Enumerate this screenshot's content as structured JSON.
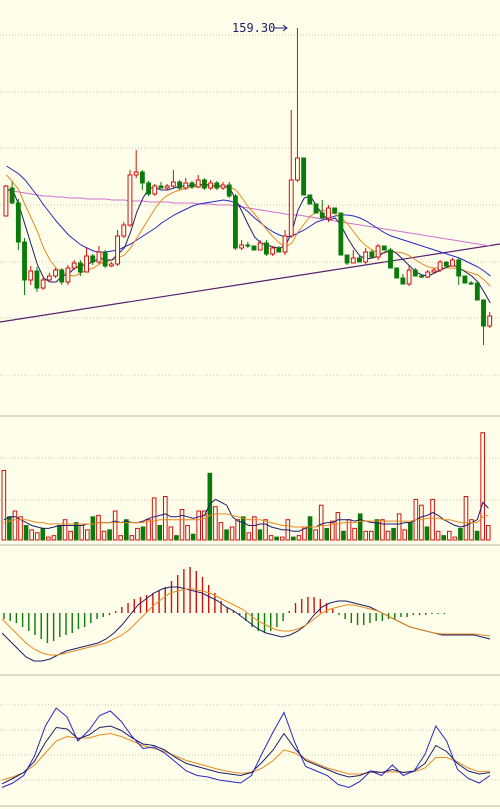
{
  "colors": {
    "background": "#fefeeb",
    "up": "#d01010",
    "down": "#0a7a0a",
    "ma5": "#1e1e6e",
    "ma10": "#e88a1e",
    "ma20": "#2828c8",
    "ma60": "#d070d0",
    "trendline": "#5a1e6e",
    "grid": "#c8c8a8"
  },
  "chart_data": [
    {
      "type": "candlestick",
      "annotation": "159.30",
      "high_value": 159.3,
      "candles_ohlc": [
        [
          216,
          186,
          188,
          185
        ],
        [
          188,
          203,
          182,
          204
        ],
        [
          203,
          242,
          199,
          250
        ],
        [
          242,
          280,
          238,
          295
        ],
        [
          280,
          271,
          285,
          266
        ],
        [
          271,
          288,
          267,
          292
        ],
        [
          288,
          280,
          290,
          277
        ],
        [
          280,
          276,
          282,
          273
        ],
        [
          276,
          270,
          278,
          268
        ],
        [
          270,
          282,
          268,
          285
        ],
        [
          282,
          268,
          285,
          265
        ],
        [
          268,
          263,
          270,
          260
        ],
        [
          263,
          272,
          260,
          276
        ],
        [
          272,
          256,
          272,
          248
        ],
        [
          256,
          262,
          254,
          265
        ],
        [
          262,
          252,
          264,
          246
        ],
        [
          252,
          266,
          250,
          268
        ],
        [
          266,
          264,
          267,
          262
        ],
        [
          264,
          236,
          266,
          230
        ],
        [
          236,
          225,
          238,
          222
        ],
        [
          225,
          175,
          227,
          170
        ],
        [
          175,
          172,
          178,
          150
        ],
        [
          172,
          183,
          170,
          190
        ],
        [
          183,
          194,
          181,
          196
        ],
        [
          194,
          186,
          196,
          184
        ],
        [
          186,
          188,
          188,
          182
        ],
        [
          188,
          186,
          190,
          184
        ],
        [
          186,
          182,
          188,
          170
        ],
        [
          182,
          188,
          180,
          190
        ],
        [
          188,
          183,
          190,
          178
        ],
        [
          183,
          187,
          181,
          189
        ],
        [
          187,
          180,
          188,
          175
        ],
        [
          180,
          188,
          178,
          190
        ],
        [
          188,
          183,
          190,
          180
        ],
        [
          183,
          188,
          181,
          190
        ],
        [
          188,
          185,
          190,
          182
        ],
        [
          185,
          196,
          182,
          198
        ],
        [
          196,
          248,
          194,
          250
        ],
        [
          248,
          245,
          250,
          240
        ],
        [
          245,
          246,
          248,
          242
        ],
        [
          246,
          250,
          248,
          246
        ],
        [
          250,
          243,
          250,
          240
        ],
        [
          243,
          254,
          240,
          256
        ],
        [
          254,
          248,
          256,
          246
        ],
        [
          248,
          252,
          250,
          246
        ],
        [
          252,
          236,
          255,
          230
        ],
        [
          236,
          180,
          238,
          110
        ],
        [
          180,
          158,
          182,
          28
        ],
        [
          158,
          195,
          160,
          185
        ],
        [
          195,
          204,
          197,
          197
        ],
        [
          204,
          213,
          206,
          210
        ],
        [
          213,
          218,
          215,
          200
        ],
        [
          218,
          208,
          222,
          205
        ],
        [
          208,
          213,
          210,
          212
        ],
        [
          213,
          255,
          215,
          252
        ],
        [
          255,
          263,
          258,
          265
        ],
        [
          263,
          258,
          260,
          250
        ],
        [
          258,
          262,
          260,
          255
        ],
        [
          262,
          252,
          264,
          248
        ],
        [
          252,
          257,
          255,
          250
        ],
        [
          257,
          246,
          260,
          244
        ],
        [
          246,
          250,
          248,
          246
        ],
        [
          250,
          268,
          248,
          262
        ],
        [
          268,
          278,
          270,
          270
        ],
        [
          278,
          284,
          280,
          274
        ],
        [
          284,
          270,
          286,
          266
        ],
        [
          270,
          276,
          272,
          268
        ],
        [
          276,
          277,
          278,
          274
        ],
        [
          277,
          272,
          278,
          270
        ],
        [
          272,
          270,
          274,
          268
        ],
        [
          270,
          262,
          272,
          260
        ],
        [
          262,
          266,
          268,
          263
        ],
        [
          266,
          260,
          265,
          258
        ],
        [
          260,
          276,
          258,
          285
        ],
        [
          276,
          283,
          278,
          280
        ],
        [
          283,
          283,
          285,
          281
        ],
        [
          283,
          300,
          285,
          296
        ],
        [
          300,
          326,
          302,
          345
        ],
        [
          326,
          316,
          328,
          312
        ]
      ],
      "ma": {
        "ma5": [
          190,
          190,
          205,
          225,
          245,
          265,
          278,
          282,
          282,
          276,
          274,
          268,
          266,
          264,
          262,
          258,
          260,
          260,
          254,
          248,
          232,
          212,
          198,
          188,
          188,
          190,
          190,
          188,
          186,
          186,
          185,
          185,
          184,
          186,
          186,
          186,
          188,
          200,
          212,
          225,
          237,
          243,
          245,
          247,
          248,
          246,
          232,
          210,
          198,
          196,
          206,
          215,
          220,
          218,
          226,
          238,
          248,
          256,
          259,
          258,
          256,
          252,
          250,
          254,
          260,
          266,
          272,
          275,
          276,
          273,
          270,
          267,
          265,
          268,
          272,
          276,
          282,
          292,
          303
        ],
        "ma10": [
          175,
          182,
          190,
          205,
          218,
          232,
          248,
          260,
          268,
          272,
          275,
          276,
          273,
          270,
          268,
          264,
          262,
          260,
          258,
          255,
          248,
          238,
          228,
          218,
          208,
          200,
          195,
          192,
          190,
          188,
          187,
          186,
          186,
          186,
          186,
          186,
          187,
          190,
          198,
          207,
          214,
          222,
          230,
          237,
          243,
          247,
          243,
          232,
          224,
          216,
          212,
          210,
          212,
          214,
          218,
          224,
          232,
          240,
          246,
          250,
          253,
          253,
          252,
          252,
          253,
          256,
          260,
          264,
          267,
          268,
          268,
          268,
          268,
          269,
          271,
          273,
          275,
          280,
          286
        ],
        "ma20": [
          166,
          170,
          174,
          180,
          188,
          196,
          205,
          213,
          221,
          228,
          235,
          240,
          245,
          248,
          251,
          252,
          252,
          251,
          250,
          247,
          244,
          240,
          236,
          232,
          228,
          223,
          219,
          215,
          212,
          209,
          206,
          204,
          203,
          202,
          201,
          200,
          201,
          203,
          207,
          212,
          218,
          223,
          228,
          232,
          235,
          237,
          236,
          233,
          230,
          226,
          222,
          220,
          218,
          216,
          215,
          215,
          216,
          218,
          221,
          225,
          229,
          233,
          236,
          238,
          240,
          242,
          244,
          246,
          248,
          250,
          252,
          254,
          256,
          258,
          261,
          264,
          267,
          271,
          276
        ],
        "ma60": [
          190,
          191,
          192,
          193,
          194,
          195,
          196,
          196,
          197,
          197,
          198,
          198,
          198,
          199,
          199,
          199,
          199,
          200,
          200,
          200,
          201,
          201,
          201,
          202,
          202,
          202,
          202,
          203,
          203,
          203,
          203,
          204,
          204,
          204,
          205,
          205,
          205,
          206,
          207,
          208,
          209,
          210,
          211,
          212,
          213,
          214,
          215,
          215,
          216,
          217,
          218,
          219,
          220,
          221,
          222,
          223,
          224,
          225,
          226,
          227,
          228,
          229,
          230,
          231,
          232,
          233,
          234,
          235,
          236,
          237,
          238,
          239,
          240,
          241,
          242,
          243,
          244,
          245,
          246
        ]
      },
      "trendline": [
        [
          0,
          322
        ],
        [
          500,
          244
        ]
      ],
      "grid_y": [
        35,
        92,
        148,
        205,
        262,
        318,
        375
      ]
    },
    {
      "type": "bar",
      "name": "volume",
      "values": [
        48,
        16,
        20,
        16,
        10,
        7,
        5,
        8,
        2,
        3,
        10,
        14,
        6,
        12,
        10,
        7,
        16,
        17,
        6,
        7,
        20,
        3,
        14,
        3,
        8,
        9,
        14,
        29,
        10,
        30,
        9,
        3,
        21,
        10,
        4,
        20,
        20,
        46,
        23,
        12,
        7,
        9,
        14,
        16,
        5,
        16,
        7,
        14,
        3,
        2,
        2,
        14,
        2,
        3,
        9,
        16,
        7,
        24,
        8,
        13,
        19,
        6,
        14,
        8,
        18,
        6,
        6,
        14,
        14,
        6,
        8,
        18,
        7,
        12,
        28,
        24,
        9,
        28,
        6,
        3,
        6,
        2,
        8,
        30,
        14,
        6,
        74,
        10
      ],
      "lines": {
        "short": [
          14,
          16,
          16,
          14,
          12,
          10,
          9,
          8,
          8,
          9,
          10,
          10,
          10,
          10,
          10,
          11,
          11,
          12,
          12,
          12,
          13,
          12,
          13,
          12,
          12,
          13,
          15,
          16,
          17,
          18,
          16,
          16,
          17,
          16,
          15,
          16,
          17,
          25,
          28,
          26,
          24,
          16,
          13,
          12,
          10,
          10,
          11,
          11,
          9,
          8,
          7,
          7,
          6,
          6,
          8,
          9,
          9,
          11,
          12,
          12,
          14,
          14,
          14,
          13,
          14,
          13,
          12,
          12,
          11,
          11,
          11,
          11,
          12,
          12,
          14,
          16,
          17,
          19,
          17,
          14,
          12,
          10,
          9,
          10,
          12,
          14,
          26,
          22
        ],
        "long": [
          12,
          13,
          14,
          14,
          14,
          13,
          12,
          12,
          11,
          11,
          11,
          11,
          11,
          11,
          11,
          11,
          11,
          12,
          12,
          12,
          12,
          12,
          12,
          12,
          12,
          12,
          13,
          13,
          14,
          14,
          14,
          14,
          14,
          14,
          14,
          14,
          15,
          17,
          18,
          18,
          18,
          17,
          16,
          15,
          14,
          14,
          14,
          13,
          12,
          11,
          10,
          10,
          9,
          9,
          9,
          9,
          9,
          10,
          10,
          11,
          11,
          12,
          12,
          12,
          13,
          13,
          13,
          13,
          13,
          13,
          13,
          13,
          13,
          13,
          14,
          14,
          15,
          15,
          15,
          14,
          14,
          13,
          12,
          12,
          12,
          12,
          16,
          17
        ]
      },
      "grid_y": [
        458,
        500
      ]
    },
    {
      "type": "bar",
      "name": "macd",
      "histogram": [
        -6,
        -8,
        -10,
        -14,
        -18,
        -22,
        -26,
        -30,
        -28,
        -24,
        -22,
        -20,
        -16,
        -14,
        -10,
        -6,
        -4,
        -2,
        2,
        6,
        10,
        14,
        16,
        18,
        20,
        22,
        26,
        32,
        38,
        44,
        46,
        42,
        36,
        28,
        20,
        12,
        6,
        2,
        -2,
        -8,
        -14,
        -18,
        -20,
        -18,
        -14,
        -8,
        2,
        10,
        14,
        16,
        16,
        14,
        10,
        4,
        -2,
        -6,
        -10,
        -12,
        -12,
        -10,
        -8,
        -8,
        -6,
        -6,
        -4,
        -4,
        -2,
        -2,
        -2,
        -1,
        -1,
        -1,
        0,
        0,
        0,
        0,
        0,
        0,
        0
      ],
      "dif": [
        -20,
        -28,
        -36,
        -44,
        -48,
        -48,
        -46,
        -42,
        -38,
        -36,
        -34,
        -32,
        -30,
        -26,
        -20,
        -12,
        -2,
        8,
        14,
        20,
        24,
        26,
        26,
        24,
        22,
        20,
        16,
        12,
        6,
        2,
        -4,
        -10,
        -16,
        -20,
        -22,
        -24,
        -22,
        -18,
        -12,
        -2,
        6,
        10,
        12,
        12,
        10,
        8,
        6,
        2,
        -2,
        -6,
        -10,
        -14,
        -16,
        -18,
        -20,
        -22,
        -22,
        -22,
        -22,
        -22,
        -24,
        -26
      ],
      "dea": [
        -6,
        -14,
        -22,
        -30,
        -36,
        -40,
        -42,
        -42,
        -40,
        -38,
        -36,
        -34,
        -32,
        -30,
        -26,
        -22,
        -16,
        -8,
        0,
        8,
        14,
        20,
        22,
        24,
        24,
        22,
        20,
        16,
        12,
        8,
        4,
        -2,
        -8,
        -12,
        -16,
        -18,
        -18,
        -16,
        -12,
        -6,
        0,
        4,
        6,
        8,
        8,
        6,
        4,
        2,
        -2,
        -6,
        -10,
        -14,
        -16,
        -18,
        -20,
        -21,
        -21,
        -21,
        -21,
        -21,
        -22,
        -23
      ],
      "zero_y": 613
    },
    {
      "type": "line",
      "name": "kdj",
      "k": [
        -5,
        2,
        10,
        25,
        50,
        70,
        68,
        55,
        60,
        70,
        72,
        66,
        56,
        48,
        46,
        40,
        30,
        22,
        18,
        14,
        10,
        8,
        6,
        10,
        24,
        40,
        62,
        42,
        26,
        20,
        14,
        8,
        4,
        6,
        12,
        10,
        14,
        10,
        12,
        22,
        46,
        38,
        22,
        12,
        8,
        10
      ],
      "d": [
        0,
        4,
        10,
        20,
        36,
        52,
        58,
        56,
        56,
        60,
        62,
        58,
        52,
        46,
        42,
        38,
        32,
        26,
        22,
        18,
        14,
        11,
        9,
        10,
        16,
        26,
        40,
        36,
        28,
        22,
        16,
        12,
        8,
        8,
        10,
        10,
        11,
        10,
        11,
        16,
        30,
        30,
        24,
        16,
        11,
        12
      ],
      "j": [
        -10,
        -4,
        6,
        32,
        72,
        96,
        84,
        52,
        66,
        86,
        92,
        78,
        58,
        42,
        44,
        36,
        24,
        12,
        6,
        4,
        0,
        -2,
        -4,
        6,
        36,
        64,
        90,
        50,
        18,
        12,
        6,
        -6,
        -10,
        -2,
        12,
        6,
        20,
        6,
        12,
        34,
        72,
        52,
        14,
        2,
        -4,
        6
      ],
      "grid_y": [
        705,
        730,
        755,
        780
      ]
    }
  ]
}
